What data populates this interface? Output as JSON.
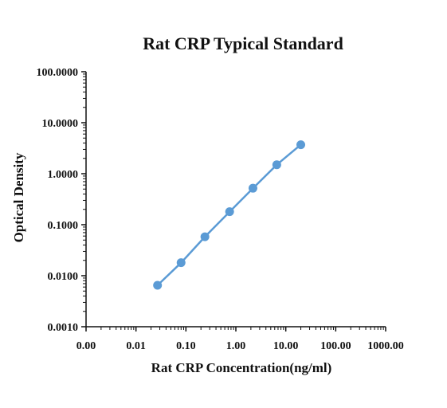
{
  "chart_data": {
    "type": "scatter",
    "title": "Rat CRP Typical Standard",
    "xlabel": "Rat CRP Concentration(ng/ml)",
    "ylabel": "Optical Density",
    "x_scale": "log",
    "y_scale": "log",
    "xlim": [
      0.001,
      1000
    ],
    "ylim": [
      0.001,
      100
    ],
    "x_ticks": [
      0.001,
      0.01,
      0.1,
      1,
      10,
      100,
      1000
    ],
    "x_tick_labels": [
      "0.00",
      "0.01",
      "0.10",
      "1.00",
      "10.00",
      "100.00",
      "1000.00"
    ],
    "y_ticks": [
      0.001,
      0.01,
      0.1,
      1,
      10,
      100
    ],
    "y_tick_labels": [
      "0.0010",
      "0.0100",
      "0.1000",
      "1.0000",
      "10.0000",
      "100.0000"
    ],
    "grid": false,
    "series": [
      {
        "color": "#5b9bd5",
        "x": [
          0.027,
          0.08,
          0.24,
          0.75,
          2.2,
          6.6,
          20
        ],
        "y": [
          0.0065,
          0.018,
          0.058,
          0.18,
          0.52,
          1.5,
          3.7
        ]
      }
    ]
  }
}
